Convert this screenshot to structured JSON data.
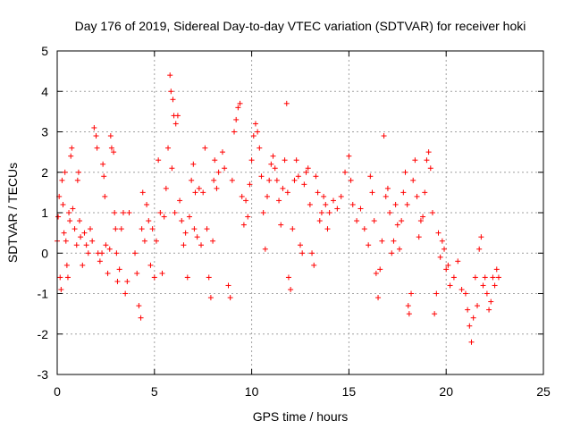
{
  "chart_data": {
    "type": "scatter",
    "title": "Day 176 of 2019, Sidereal Day-to-day VTEC variation (SDTVAR) for receiver hoki",
    "xlabel": "GPS time / hours",
    "ylabel": "SDTVAR / TECUs",
    "xlim": [
      0,
      25
    ],
    "ylim": [
      -3,
      5
    ],
    "xticks": [
      0,
      5,
      10,
      15,
      20,
      25
    ],
    "yticks": [
      -3,
      -2,
      -1,
      0,
      1,
      2,
      3,
      4,
      5
    ],
    "grid": true,
    "marker": "+",
    "color": "#ff0000",
    "series": [
      {
        "name": "SDTVAR",
        "points": [
          [
            0.0,
            0.3
          ],
          [
            0.05,
            0.9
          ],
          [
            0.1,
            1.4
          ],
          [
            0.15,
            -0.6
          ],
          [
            0.2,
            -0.9
          ],
          [
            0.25,
            1.8
          ],
          [
            0.3,
            1.2
          ],
          [
            0.35,
            0.5
          ],
          [
            0.4,
            2.0
          ],
          [
            0.45,
            0.3
          ],
          [
            0.5,
            -0.3
          ],
          [
            0.55,
            -0.6
          ],
          [
            0.6,
            1.0
          ],
          [
            0.65,
            0.8
          ],
          [
            0.7,
            2.4
          ],
          [
            0.75,
            2.6
          ],
          [
            0.8,
            1.1
          ],
          [
            0.9,
            0.6
          ],
          [
            1.0,
            0.2
          ],
          [
            1.05,
            1.8
          ],
          [
            1.1,
            2.0
          ],
          [
            1.15,
            0.8
          ],
          [
            1.2,
            0.4
          ],
          [
            1.3,
            -0.3
          ],
          [
            1.4,
            0.5
          ],
          [
            1.5,
            0.2
          ],
          [
            1.6,
            0.0
          ],
          [
            1.7,
            0.6
          ],
          [
            1.8,
            0.3
          ],
          [
            1.9,
            3.1
          ],
          [
            2.0,
            2.9
          ],
          [
            2.05,
            2.6
          ],
          [
            2.1,
            0.0
          ],
          [
            2.2,
            -0.2
          ],
          [
            2.3,
            0.0
          ],
          [
            2.35,
            2.2
          ],
          [
            2.4,
            1.9
          ],
          [
            2.45,
            1.4
          ],
          [
            2.5,
            0.2
          ],
          [
            2.6,
            -0.5
          ],
          [
            2.7,
            0.1
          ],
          [
            2.75,
            2.9
          ],
          [
            2.8,
            2.6
          ],
          [
            2.9,
            2.5
          ],
          [
            2.95,
            1.0
          ],
          [
            3.0,
            0.6
          ],
          [
            3.05,
            0.0
          ],
          [
            3.1,
            -0.7
          ],
          [
            3.2,
            -0.4
          ],
          [
            3.3,
            0.6
          ],
          [
            3.4,
            1.0
          ],
          [
            3.5,
            -1.0
          ],
          [
            3.6,
            -0.7
          ],
          [
            3.7,
            1.0
          ],
          [
            4.0,
            0.0
          ],
          [
            4.1,
            -0.5
          ],
          [
            4.2,
            -1.3
          ],
          [
            4.3,
            -1.6
          ],
          [
            4.35,
            0.6
          ],
          [
            4.4,
            1.5
          ],
          [
            4.5,
            0.3
          ],
          [
            4.6,
            1.2
          ],
          [
            4.7,
            0.8
          ],
          [
            4.8,
            -0.3
          ],
          [
            4.9,
            0.6
          ],
          [
            5.0,
            -0.6
          ],
          [
            5.1,
            0.3
          ],
          [
            5.2,
            2.3
          ],
          [
            5.3,
            1.0
          ],
          [
            5.4,
            -0.5
          ],
          [
            5.5,
            0.9
          ],
          [
            5.6,
            1.6
          ],
          [
            5.7,
            2.6
          ],
          [
            5.8,
            4.4
          ],
          [
            5.85,
            4.0
          ],
          [
            5.9,
            2.1
          ],
          [
            5.95,
            3.8
          ],
          [
            6.0,
            3.4
          ],
          [
            6.05,
            1.0
          ],
          [
            6.1,
            3.2
          ],
          [
            6.2,
            3.4
          ],
          [
            6.3,
            1.3
          ],
          [
            6.4,
            0.8
          ],
          [
            6.5,
            0.2
          ],
          [
            6.6,
            0.5
          ],
          [
            6.7,
            -0.6
          ],
          [
            6.8,
            0.9
          ],
          [
            6.9,
            1.8
          ],
          [
            7.0,
            2.2
          ],
          [
            7.05,
            0.6
          ],
          [
            7.1,
            1.5
          ],
          [
            7.2,
            0.4
          ],
          [
            7.3,
            1.6
          ],
          [
            7.4,
            0.2
          ],
          [
            7.5,
            1.5
          ],
          [
            7.6,
            2.6
          ],
          [
            7.7,
            0.6
          ],
          [
            7.8,
            -0.6
          ],
          [
            7.9,
            -1.1
          ],
          [
            8.0,
            0.3
          ],
          [
            8.05,
            1.8
          ],
          [
            8.1,
            2.3
          ],
          [
            8.2,
            1.6
          ],
          [
            8.3,
            2.0
          ],
          [
            8.5,
            2.5
          ],
          [
            8.6,
            2.1
          ],
          [
            8.8,
            -0.8
          ],
          [
            8.9,
            -1.1
          ],
          [
            9.0,
            1.8
          ],
          [
            9.1,
            3.0
          ],
          [
            9.2,
            3.3
          ],
          [
            9.3,
            3.6
          ],
          [
            9.4,
            3.7
          ],
          [
            9.5,
            1.4
          ],
          [
            9.6,
            0.7
          ],
          [
            9.7,
            1.3
          ],
          [
            9.8,
            0.9
          ],
          [
            9.9,
            1.7
          ],
          [
            10.0,
            2.3
          ],
          [
            10.1,
            2.9
          ],
          [
            10.2,
            3.2
          ],
          [
            10.3,
            3.0
          ],
          [
            10.4,
            2.6
          ],
          [
            10.5,
            1.9
          ],
          [
            10.6,
            1.0
          ],
          [
            10.7,
            0.1
          ],
          [
            10.8,
            1.4
          ],
          [
            10.9,
            1.8
          ],
          [
            11.0,
            2.2
          ],
          [
            11.1,
            2.4
          ],
          [
            11.2,
            2.1
          ],
          [
            11.3,
            1.8
          ],
          [
            11.4,
            1.3
          ],
          [
            11.5,
            0.7
          ],
          [
            11.6,
            1.6
          ],
          [
            11.7,
            2.3
          ],
          [
            11.8,
            3.7
          ],
          [
            11.85,
            1.5
          ],
          [
            11.9,
            -0.6
          ],
          [
            12.0,
            -0.9
          ],
          [
            12.1,
            0.6
          ],
          [
            12.2,
            1.8
          ],
          [
            12.3,
            2.3
          ],
          [
            12.4,
            1.9
          ],
          [
            12.5,
            0.2
          ],
          [
            12.6,
            0.0
          ],
          [
            12.7,
            1.7
          ],
          [
            12.8,
            2.0
          ],
          [
            12.9,
            2.1
          ],
          [
            13.0,
            1.2
          ],
          [
            13.1,
            0.0
          ],
          [
            13.2,
            -0.3
          ],
          [
            13.3,
            1.9
          ],
          [
            13.4,
            1.5
          ],
          [
            13.5,
            0.8
          ],
          [
            13.6,
            1.0
          ],
          [
            13.7,
            1.4
          ],
          [
            13.8,
            1.2
          ],
          [
            13.9,
            0.6
          ],
          [
            14.0,
            1.0
          ],
          [
            14.2,
            1.3
          ],
          [
            14.4,
            1.1
          ],
          [
            14.6,
            1.4
          ],
          [
            14.8,
            2.0
          ],
          [
            15.0,
            2.4
          ],
          [
            15.1,
            1.8
          ],
          [
            15.2,
            1.2
          ],
          [
            15.4,
            0.8
          ],
          [
            15.6,
            1.1
          ],
          [
            15.8,
            0.6
          ],
          [
            16.0,
            0.2
          ],
          [
            16.1,
            1.9
          ],
          [
            16.2,
            1.5
          ],
          [
            16.3,
            0.8
          ],
          [
            16.4,
            -0.5
          ],
          [
            16.5,
            -1.1
          ],
          [
            16.6,
            -0.4
          ],
          [
            16.7,
            0.3
          ],
          [
            16.8,
            2.9
          ],
          [
            16.9,
            1.4
          ],
          [
            17.0,
            1.6
          ],
          [
            17.1,
            1.0
          ],
          [
            17.2,
            0.0
          ],
          [
            17.3,
            0.3
          ],
          [
            17.4,
            1.2
          ],
          [
            17.5,
            0.7
          ],
          [
            17.6,
            0.1
          ],
          [
            17.7,
            0.8
          ],
          [
            17.8,
            1.5
          ],
          [
            17.9,
            2.0
          ],
          [
            18.0,
            1.2
          ],
          [
            18.05,
            -1.3
          ],
          [
            18.1,
            -1.5
          ],
          [
            18.2,
            -1.0
          ],
          [
            18.3,
            1.8
          ],
          [
            18.4,
            2.3
          ],
          [
            18.5,
            1.4
          ],
          [
            18.6,
            0.4
          ],
          [
            18.7,
            0.8
          ],
          [
            18.8,
            0.9
          ],
          [
            18.9,
            1.5
          ],
          [
            19.0,
            2.3
          ],
          [
            19.1,
            2.5
          ],
          [
            19.2,
            2.1
          ],
          [
            19.3,
            1.0
          ],
          [
            19.4,
            -1.5
          ],
          [
            19.5,
            -1.0
          ],
          [
            19.6,
            0.5
          ],
          [
            19.7,
            -0.1
          ],
          [
            19.8,
            0.3
          ],
          [
            19.9,
            0.1
          ],
          [
            20.0,
            -0.4
          ],
          [
            20.1,
            -0.3
          ],
          [
            20.2,
            -0.8
          ],
          [
            20.4,
            -0.6
          ],
          [
            20.6,
            -0.2
          ],
          [
            20.8,
            -0.9
          ],
          [
            21.0,
            -1.0
          ],
          [
            21.1,
            -1.4
          ],
          [
            21.2,
            -1.8
          ],
          [
            21.3,
            -2.2
          ],
          [
            21.4,
            -1.6
          ],
          [
            21.5,
            -0.6
          ],
          [
            21.6,
            -1.3
          ],
          [
            21.7,
            0.1
          ],
          [
            21.8,
            0.4
          ],
          [
            21.9,
            -0.8
          ],
          [
            22.0,
            -0.6
          ],
          [
            22.1,
            -1.0
          ],
          [
            22.2,
            -1.4
          ],
          [
            22.3,
            -1.2
          ],
          [
            22.4,
            -0.6
          ],
          [
            22.5,
            -0.8
          ],
          [
            22.6,
            -0.4
          ],
          [
            22.7,
            -0.6
          ]
        ]
      }
    ]
  }
}
